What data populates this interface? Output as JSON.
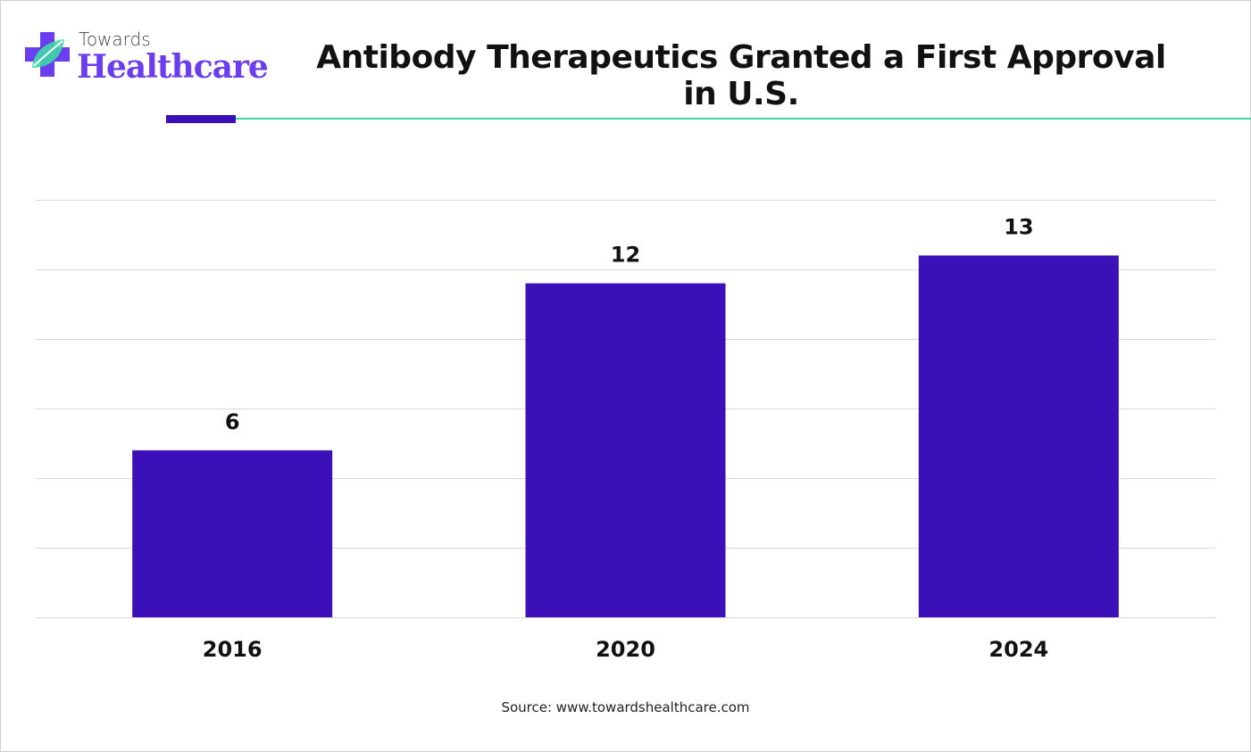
{
  "brand": {
    "small": "Towards",
    "big": "Healthcare",
    "accent": "#6b3df0",
    "leaf_color": "#3fd6a6"
  },
  "title": "Antibody Therapeutics Granted a First Approval in U.S.",
  "source": "Source: www.towardshealthcare.com",
  "colors": {
    "bar": "#3b10b8",
    "rule_dark": "#3b10b8",
    "rule_teal": "#3fd6a6",
    "grid": "#d9d9d9"
  },
  "chart_data": {
    "type": "bar",
    "title": "Antibody Therapeutics Granted a First Approval in U.S.",
    "categories": [
      "2016",
      "2020",
      "2024"
    ],
    "values": [
      6,
      12,
      13
    ],
    "data_labels": [
      "6",
      "12",
      "13"
    ],
    "xlabel": "",
    "ylabel": "",
    "ylim": [
      0,
      15
    ],
    "grid": true,
    "legend": "none"
  }
}
